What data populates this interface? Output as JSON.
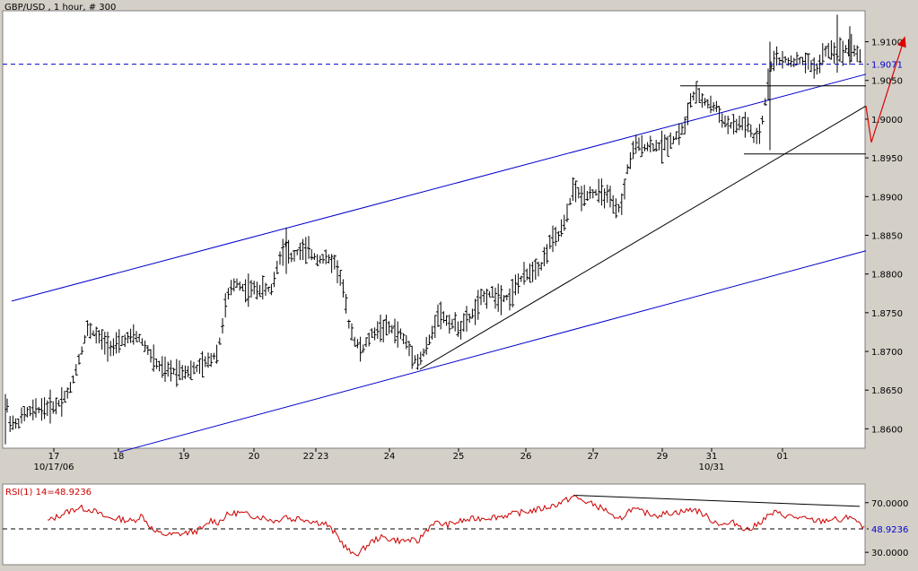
{
  "chart_data": {
    "type": "candlestick-ohlc",
    "title": "GBP/USD , 1 hour, # 300",
    "colors": {
      "background": "#ffffff",
      "frame": "#d4d0c8",
      "bars": "#000000",
      "channel": "#0000cc",
      "dashed_level": "#0000cc",
      "rsi_line": "#cc0000",
      "projection_arrow": "#dd0000",
      "trendline": "#000000"
    },
    "price_axis": {
      "ylim": [
        1.8575,
        1.914
      ],
      "ticks": [
        "1.8600",
        "1.8650",
        "1.8700",
        "1.8750",
        "1.8800",
        "1.8850",
        "1.8900",
        "1.8950",
        "1.9000",
        "1.9050",
        "1.9100"
      ],
      "current_level": "1.9071"
    },
    "time_axis": {
      "labels": [
        "17",
        "18",
        "19",
        "20",
        "22 23",
        "24",
        "25",
        "26",
        "27",
        "29",
        "31",
        "01"
      ],
      "sublabels": [
        {
          "text": "10/17/06",
          "under": "17"
        },
        {
          "text": "10/31",
          "under": "31"
        }
      ]
    },
    "price_path": [
      [
        0,
        1.8585
      ],
      [
        3,
        1.864
      ],
      [
        8,
        1.861
      ],
      [
        15,
        1.8605
      ],
      [
        25,
        1.862
      ],
      [
        40,
        1.8625
      ],
      [
        60,
        1.863
      ],
      [
        75,
        1.865
      ],
      [
        85,
        1.869
      ],
      [
        95,
        1.873
      ],
      [
        105,
        1.872
      ],
      [
        115,
        1.871
      ],
      [
        125,
        1.8705
      ],
      [
        135,
        1.8715
      ],
      [
        150,
        1.872
      ],
      [
        160,
        1.8705
      ],
      [
        170,
        1.8685
      ],
      [
        180,
        1.8675
      ],
      [
        195,
        1.8675
      ],
      [
        210,
        1.8675
      ],
      [
        220,
        1.868
      ],
      [
        232,
        1.869
      ],
      [
        240,
        1.87
      ],
      [
        250,
        1.877
      ],
      [
        260,
        1.879
      ],
      [
        270,
        1.878
      ],
      [
        285,
        1.878
      ],
      [
        300,
        1.878
      ],
      [
        308,
        1.882
      ],
      [
        315,
        1.884
      ],
      [
        322,
        1.882
      ],
      [
        330,
        1.883
      ],
      [
        340,
        1.883
      ],
      [
        350,
        1.882
      ],
      [
        360,
        1.882
      ],
      [
        370,
        1.8815
      ],
      [
        378,
        1.879
      ],
      [
        385,
        1.874
      ],
      [
        392,
        1.8715
      ],
      [
        400,
        1.87
      ],
      [
        410,
        1.872
      ],
      [
        420,
        1.873
      ],
      [
        432,
        1.873
      ],
      [
        445,
        1.872
      ],
      [
        455,
        1.87
      ],
      [
        463,
        1.8685
      ],
      [
        470,
        1.87
      ],
      [
        478,
        1.872
      ],
      [
        485,
        1.875
      ],
      [
        495,
        1.874
      ],
      [
        510,
        1.873
      ],
      [
        525,
        1.875
      ],
      [
        535,
        1.877
      ],
      [
        545,
        1.8775
      ],
      [
        555,
        1.877
      ],
      [
        565,
        1.877
      ],
      [
        575,
        1.879
      ],
      [
        585,
        1.88
      ],
      [
        595,
        1.881
      ],
      [
        600,
        1.881
      ],
      [
        610,
        1.884
      ],
      [
        620,
        1.885
      ],
      [
        628,
        1.887
      ],
      [
        635,
        1.891
      ],
      [
        645,
        1.89
      ],
      [
        655,
        1.8905
      ],
      [
        665,
        1.8905
      ],
      [
        675,
        1.89
      ],
      [
        683,
        1.888
      ],
      [
        690,
        1.889
      ],
      [
        697,
        1.894
      ],
      [
        705,
        1.8965
      ],
      [
        715,
        1.8965
      ],
      [
        725,
        1.8965
      ],
      [
        735,
        1.8965
      ],
      [
        748,
        1.8975
      ],
      [
        760,
        1.899
      ],
      [
        768,
        1.903
      ],
      [
        775,
        1.903
      ],
      [
        785,
        1.902
      ],
      [
        795,
        1.9015
      ],
      [
        805,
        1.8995
      ],
      [
        815,
        1.899
      ],
      [
        825,
        1.8995
      ],
      [
        832,
        1.899
      ],
      [
        838,
        1.897
      ],
      [
        845,
        1.8985
      ],
      [
        852,
        1.904
      ],
      [
        858,
        1.908
      ],
      [
        868,
        1.9075
      ],
      [
        880,
        1.9075
      ],
      [
        892,
        1.9075
      ],
      [
        900,
        1.907
      ],
      [
        908,
        1.9065
      ],
      [
        915,
        1.9085
      ],
      [
        922,
        1.909
      ],
      [
        930,
        1.9085
      ],
      [
        938,
        1.909
      ],
      [
        945,
        1.9095
      ],
      [
        952,
        1.9085
      ],
      [
        958,
        1.9075
      ]
    ],
    "rsi": {
      "label": "RSI(1) 14=48.9236",
      "ylim": [
        20,
        85
      ],
      "ticks": [
        "70.0000",
        "30.0000"
      ],
      "current": "48.9236",
      "current_value": 48.9236,
      "path": [
        [
          50,
          55
        ],
        [
          70,
          62
        ],
        [
          85,
          66
        ],
        [
          100,
          64
        ],
        [
          115,
          58
        ],
        [
          130,
          57
        ],
        [
          145,
          55
        ],
        [
          155,
          60
        ],
        [
          163,
          52
        ],
        [
          170,
          46
        ],
        [
          185,
          44
        ],
        [
          200,
          45
        ],
        [
          215,
          47
        ],
        [
          225,
          50
        ],
        [
          232,
          56
        ],
        [
          240,
          54
        ],
        [
          250,
          60
        ],
        [
          262,
          62
        ],
        [
          275,
          60
        ],
        [
          290,
          58
        ],
        [
          305,
          55
        ],
        [
          315,
          60
        ],
        [
          322,
          56
        ],
        [
          330,
          58
        ],
        [
          345,
          55
        ],
        [
          360,
          53
        ],
        [
          372,
          44
        ],
        [
          380,
          36
        ],
        [
          390,
          28
        ],
        [
          398,
          30
        ],
        [
          410,
          38
        ],
        [
          420,
          42
        ],
        [
          430,
          41
        ],
        [
          445,
          39
        ],
        [
          455,
          40
        ],
        [
          462,
          38
        ],
        [
          470,
          46
        ],
        [
          480,
          54
        ],
        [
          495,
          52
        ],
        [
          510,
          55
        ],
        [
          525,
          57
        ],
        [
          540,
          58
        ],
        [
          555,
          59
        ],
        [
          570,
          61
        ],
        [
          585,
          63
        ],
        [
          600,
          65
        ],
        [
          615,
          68
        ],
        [
          628,
          72
        ],
        [
          636,
          75
        ],
        [
          645,
          72
        ],
        [
          660,
          68
        ],
        [
          675,
          63
        ],
        [
          683,
          55
        ],
        [
          690,
          58
        ],
        [
          700,
          65
        ],
        [
          715,
          62
        ],
        [
          730,
          60
        ],
        [
          745,
          62
        ],
        [
          760,
          63
        ],
        [
          770,
          65
        ],
        [
          780,
          61
        ],
        [
          792,
          55
        ],
        [
          805,
          52
        ],
        [
          815,
          54
        ],
        [
          825,
          50
        ],
        [
          832,
          48
        ],
        [
          840,
          52
        ],
        [
          850,
          58
        ],
        [
          860,
          62
        ],
        [
          870,
          60
        ],
        [
          885,
          58
        ],
        [
          900,
          56
        ],
        [
          912,
          55
        ],
        [
          925,
          57
        ],
        [
          935,
          55
        ],
        [
          945,
          60
        ],
        [
          955,
          52
        ],
        [
          960,
          49
        ]
      ]
    },
    "annotations": {
      "lower_channel": [
        [
          130,
          1.857
        ],
        [
          962,
          1.883
        ]
      ],
      "upper_channel": [
        [
          10,
          1.8765
        ],
        [
          962,
          1.9058
        ]
      ],
      "support_trend": [
        [
          465,
          1.8677
        ],
        [
          962,
          1.9017
        ]
      ],
      "box_top": [
        [
          755,
          1.9043
        ],
        [
          962,
          1.9043
        ]
      ],
      "box_bottom": [
        [
          826,
          1.8955
        ],
        [
          962,
          1.8955
        ]
      ],
      "projection_arrow": [
        [
          962,
          1.9017
        ],
        [
          968,
          1.897
        ],
        [
          1005,
          1.9105
        ]
      ],
      "rsi_trend": [
        [
          636,
          76
        ],
        [
          955,
          67
        ]
      ]
    }
  }
}
